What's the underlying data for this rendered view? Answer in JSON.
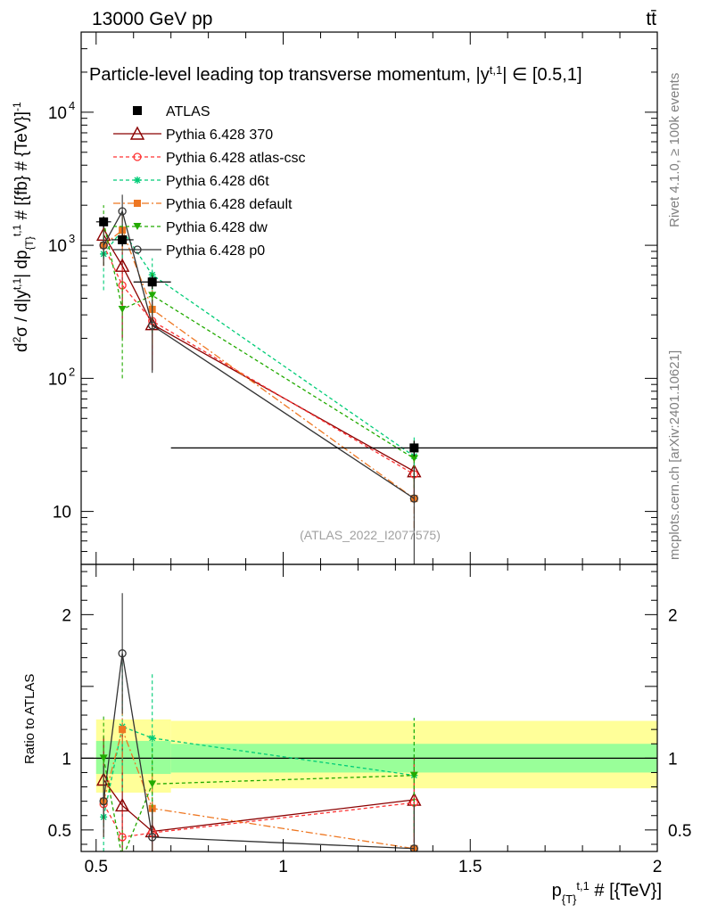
{
  "header": {
    "energy_label": "13000 GeV pp",
    "process_label": "tt̄"
  },
  "side_labels": {
    "rivet": "Rivet 4.1.0, ≥ 100k events",
    "mcplots": "mcplots.cern.ch [arXiv:2401.10621]"
  },
  "chart_data": {
    "type": "line",
    "title": "Particle-level leading top transverse momentum, |y",
    "title_sup": "t,1",
    "title_tail": "| ∈ [0.5,1]",
    "analysis_id": "(ATLAS_2022_I2077575)",
    "xlabel": "p",
    "xlabel_sub": "{T}",
    "xlabel_sup": "t,1",
    "xlabel_tail": " # [{TeV}]",
    "ylabel": "d²σ / d|y^{t,1}| dp_{T}^{t,1} # [{fb} # {TeV}]^{-1}",
    "ratio_ylabel": "Ratio to ATLAS",
    "xlim": [
      0.46,
      2.0
    ],
    "ylim_main": [
      4,
      40000
    ],
    "ylim_ratio": [
      0.35,
      2.35
    ],
    "x_ticks": [
      {
        "value": 0.5,
        "label": "0.5"
      },
      {
        "value": 1.0,
        "label": "1"
      },
      {
        "value": 1.5,
        "label": "1.5"
      },
      {
        "value": 2.0,
        "label": "2"
      }
    ],
    "y_ticks_main": [
      {
        "value": 10,
        "label": "10"
      },
      {
        "value": 100,
        "label": "10",
        "sup": "2"
      },
      {
        "value": 1000,
        "label": "10",
        "sup": "3"
      },
      {
        "value": 10000,
        "label": "10",
        "sup": "4"
      }
    ],
    "y_ticks_ratio": [
      {
        "value": 0.5,
        "label": "0.5"
      },
      {
        "value": 1.0,
        "label": "1"
      },
      {
        "value": 1.5,
        "label": ""
      },
      {
        "value": 2.0,
        "label": "2"
      }
    ],
    "data_series": {
      "name": "ATLAS",
      "color": "#000000",
      "x": [
        0.52,
        0.57,
        0.65,
        1.35
      ],
      "xerr": [
        0.02,
        0.03,
        0.05,
        0.65
      ],
      "y": [
        1500,
        1100,
        530,
        30
      ],
      "yerr": [
        150,
        120,
        60,
        4
      ]
    },
    "ratio_bands": {
      "x_edges": [
        0.5,
        0.7,
        2.0
      ],
      "green": [
        [
          0.89,
          1.12
        ],
        [
          0.9,
          1.1
        ]
      ],
      "yellow": [
        [
          0.76,
          1.27
        ],
        [
          0.79,
          1.26
        ]
      ]
    },
    "series": [
      {
        "name": "Pythia 6.428 370",
        "color": "#8b0000",
        "marker": "triangle-open",
        "dash": "",
        "x": [
          0.52,
          0.57,
          0.65,
          1.35
        ],
        "y": [
          1200,
          700,
          255,
          20
        ],
        "yerr": [
          400,
          500,
          140,
          8
        ],
        "ratio": [
          0.85,
          0.67,
          0.49,
          0.71
        ],
        "ratio_err": [
          0.3,
          0.5,
          0.22,
          0.3
        ]
      },
      {
        "name": "Pythia 6.428 atlas-csc",
        "color": "#ff3333",
        "marker": "circle-open",
        "dash": "4,3",
        "x": [
          0.52,
          0.57,
          0.65,
          1.35
        ],
        "y": [
          1000,
          500,
          270,
          19
        ],
        "yerr": [
          300,
          200,
          120,
          7
        ],
        "ratio": [
          0.68,
          0.45,
          0.48,
          0.69
        ],
        "ratio_err": [
          0.2,
          0.18,
          0.2,
          0.28
        ]
      },
      {
        "name": "Pythia 6.428 d6t",
        "color": "#00cc77",
        "marker": "star",
        "dash": "4,3",
        "x": [
          0.52,
          0.57,
          0.65,
          1.35
        ],
        "y": [
          860,
          1300,
          600,
          26
        ],
        "yerr": [
          400,
          500,
          200,
          10
        ],
        "ratio": [
          0.59,
          1.22,
          1.14,
          0.88
        ],
        "ratio_err": [
          0.25,
          0.45,
          0.45,
          0.4
        ]
      },
      {
        "name": "Pythia 6.428 default",
        "color": "#ee7722",
        "marker": "square",
        "dash": "8,3,2,3",
        "x": [
          0.52,
          0.57,
          0.65,
          1.35
        ],
        "y": [
          1000,
          1300,
          330,
          12.5
        ],
        "yerr": [
          300,
          400,
          150,
          5
        ],
        "ratio": [
          0.7,
          1.2,
          0.65,
          0.37
        ],
        "ratio_err": [
          0.25,
          0.3,
          0.3,
          0.2
        ]
      },
      {
        "name": "Pythia 6.428 dw",
        "color": "#22aa00",
        "marker": "triangle-down",
        "dash": "4,3",
        "x": [
          0.52,
          0.57,
          0.65,
          1.35
        ],
        "y": [
          1500,
          330,
          420,
          25
        ],
        "yerr": [
          500,
          230,
          200,
          10
        ],
        "ratio": [
          1.0,
          0.3,
          0.82,
          0.88
        ],
        "ratio_err": [
          0.3,
          0.2,
          0.25,
          0.4
        ]
      },
      {
        "name": "Pythia 6.428 p0",
        "color": "#333333",
        "marker": "circle-open",
        "dash": "",
        "x": [
          0.52,
          0.57,
          0.65,
          1.35
        ],
        "y": [
          1000,
          1800,
          250,
          12.5
        ],
        "yerr": [
          300,
          600,
          140,
          9
        ],
        "ratio": [
          0.7,
          1.73,
          0.45,
          0.37
        ],
        "ratio_err": [
          0.25,
          0.42,
          0.2,
          0.3
        ]
      }
    ]
  }
}
